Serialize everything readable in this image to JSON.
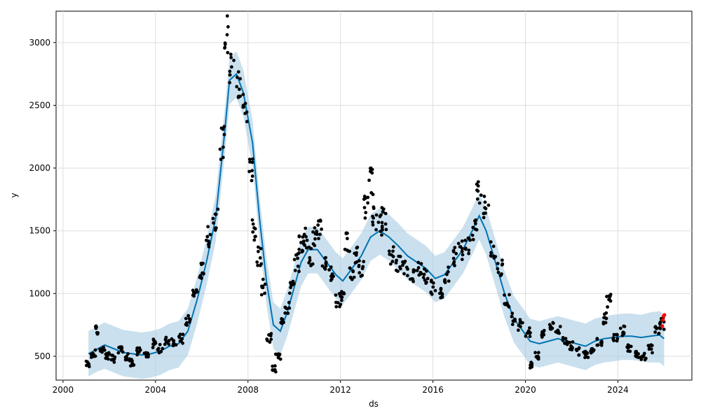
{
  "chart_data": {
    "type": "scatter",
    "title": "",
    "xlabel": "ds",
    "ylabel": "y",
    "xlim": [
      1999.7,
      2027.2
    ],
    "ylim": [
      310,
      3250
    ],
    "grid": true,
    "x_ticks": [
      2000,
      2004,
      2008,
      2012,
      2016,
      2020,
      2024
    ],
    "y_ticks": [
      500,
      1000,
      1500,
      2000,
      2500,
      3000
    ],
    "colors": {
      "observed": "#000000",
      "forecast_line": "#0072B2",
      "interval_band": "#a6cbe3",
      "recent_points": "#ff0000"
    },
    "series": [
      {
        "kind": "observed_points",
        "x": [
          2001.1,
          2001.3,
          2001.5,
          2001.7,
          2001.9,
          2002.2,
          2002.5,
          2002.8,
          2003.0,
          2003.3,
          2003.6,
          2003.9,
          2004.2,
          2004.5,
          2004.8,
          2005.1,
          2005.4,
          2005.7,
          2006.0,
          2006.3,
          2006.6,
          2006.9,
          2007.1,
          2007.3,
          2007.6,
          2007.9,
          2008.1,
          2008.3,
          2008.5,
          2008.7,
          2008.9,
          2009.1,
          2009.3,
          2009.5,
          2009.7,
          2009.9,
          2010.1,
          2010.3,
          2010.5,
          2010.7,
          2010.9,
          2011.1,
          2011.3,
          2011.6,
          2011.9,
          2012.1,
          2012.3,
          2012.5,
          2012.7,
          2012.9,
          2013.1,
          2013.3,
          2013.5,
          2013.7,
          2013.9,
          2014.2,
          2014.5,
          2014.8,
          2015.1,
          2015.4,
          2015.7,
          2016.0,
          2016.3,
          2016.6,
          2016.9,
          2017.2,
          2017.5,
          2017.8,
          2018.0,
          2018.3,
          2018.6,
          2018.9,
          2019.2,
          2019.5,
          2019.8,
          2020.1,
          2020.3,
          2020.5,
          2020.8,
          2021.1,
          2021.4,
          2021.7,
          2022.0,
          2022.3,
          2022.6,
          2022.9,
          2023.2,
          2023.4,
          2023.6,
          2023.9,
          2024.2,
          2024.5,
          2024.8,
          2025.1,
          2025.4,
          2025.7,
          2025.9
        ],
        "values": [
          440,
          520,
          700,
          560,
          500,
          480,
          550,
          500,
          450,
          540,
          500,
          600,
          560,
          620,
          620,
          640,
          780,
          1000,
          1180,
          1450,
          1600,
          2200,
          3050,
          2800,
          2650,
          2500,
          2000,
          1500,
          1300,
          1050,
          650,
          400,
          500,
          800,
          880,
          1050,
          1250,
          1400,
          1450,
          1300,
          1450,
          1500,
          1250,
          1150,
          950,
          1000,
          1400,
          1150,
          1300,
          1200,
          1700,
          1900,
          1600,
          1550,
          1600,
          1300,
          1250,
          1200,
          1150,
          1200,
          1150,
          1050,
          1000,
          1150,
          1300,
          1350,
          1400,
          1500,
          1800,
          1700,
          1350,
          1200,
          950,
          800,
          750,
          700,
          430,
          500,
          680,
          750,
          700,
          620,
          580,
          540,
          520,
          560,
          620,
          800,
          950,
          650,
          700,
          570,
          520,
          500,
          560,
          700,
          760
        ]
      },
      {
        "kind": "forecast",
        "name": "",
        "x": [
          2001.1,
          2001.5,
          2001.8,
          2002.2,
          2002.6,
          2003.0,
          2003.4,
          2003.8,
          2004.2,
          2004.6,
          2005.0,
          2005.4,
          2005.8,
          2006.2,
          2006.6,
          2007.0,
          2007.2,
          2007.5,
          2007.8,
          2008.2,
          2008.5,
          2008.8,
          2009.1,
          2009.4,
          2009.7,
          2010.0,
          2010.3,
          2010.6,
          2011.0,
          2011.4,
          2011.8,
          2012.1,
          2012.5,
          2012.9,
          2013.3,
          2013.7,
          2014.1,
          2014.5,
          2014.9,
          2015.3,
          2015.7,
          2016.1,
          2016.5,
          2016.9,
          2017.3,
          2017.7,
          2018.0,
          2018.3,
          2018.7,
          2019.1,
          2019.5,
          2019.9,
          2020.2,
          2020.6,
          2021.0,
          2021.4,
          2021.8,
          2022.2,
          2022.6,
          2023.0,
          2023.4,
          2023.8,
          2024.2,
          2024.6,
          2025.0,
          2025.4,
          2025.8,
          2026.0
        ],
        "values": [
          520,
          560,
          590,
          560,
          530,
          520,
          510,
          520,
          540,
          580,
          600,
          700,
          950,
          1250,
          1600,
          2300,
          2700,
          2750,
          2600,
          2200,
          1600,
          1100,
          750,
          700,
          850,
          1050,
          1250,
          1350,
          1350,
          1250,
          1150,
          1100,
          1200,
          1300,
          1450,
          1500,
          1450,
          1380,
          1300,
          1250,
          1200,
          1120,
          1150,
          1250,
          1350,
          1500,
          1620,
          1500,
          1250,
          1000,
          800,
          700,
          620,
          600,
          620,
          640,
          620,
          600,
          580,
          620,
          640,
          650,
          660,
          660,
          650,
          660,
          670,
          640
        ]
      },
      {
        "kind": "interval_band",
        "x": [
          2001.1,
          2001.5,
          2001.8,
          2002.2,
          2002.6,
          2003.0,
          2003.4,
          2003.8,
          2004.2,
          2004.6,
          2005.0,
          2005.4,
          2005.8,
          2006.2,
          2006.6,
          2007.0,
          2007.2,
          2007.5,
          2007.8,
          2008.2,
          2008.5,
          2008.8,
          2009.1,
          2009.4,
          2009.7,
          2010.0,
          2010.3,
          2010.6,
          2011.0,
          2011.4,
          2011.8,
          2012.1,
          2012.5,
          2012.9,
          2013.3,
          2013.7,
          2014.1,
          2014.5,
          2014.9,
          2015.3,
          2015.7,
          2016.1,
          2016.5,
          2016.9,
          2017.3,
          2017.7,
          2018.0,
          2018.3,
          2018.7,
          2019.1,
          2019.5,
          2019.9,
          2020.2,
          2020.6,
          2021.0,
          2021.4,
          2021.8,
          2022.2,
          2022.6,
          2023.0,
          2023.4,
          2023.8,
          2024.2,
          2024.6,
          2025.0,
          2025.4,
          2025.8,
          2026.0
        ],
        "lower": [
          340,
          380,
          400,
          370,
          340,
          330,
          320,
          330,
          350,
          390,
          410,
          510,
          760,
          1060,
          1410,
          2110,
          2510,
          2560,
          2410,
          2010,
          1410,
          910,
          560,
          510,
          660,
          860,
          1060,
          1160,
          1160,
          1060,
          960,
          910,
          1010,
          1110,
          1260,
          1310,
          1260,
          1190,
          1110,
          1060,
          1010,
          930,
          960,
          1060,
          1160,
          1310,
          1430,
          1310,
          1060,
          810,
          610,
          510,
          430,
          410,
          430,
          450,
          430,
          410,
          390,
          430,
          450,
          460,
          470,
          470,
          460,
          450,
          450,
          420
        ],
        "upper": [
          700,
          740,
          770,
          740,
          710,
          700,
          690,
          700,
          720,
          760,
          780,
          880,
          1130,
          1430,
          1780,
          2480,
          2880,
          2930,
          2780,
          2380,
          1780,
          1280,
          930,
          880,
          1030,
          1230,
          1430,
          1530,
          1530,
          1430,
          1330,
          1280,
          1380,
          1480,
          1630,
          1680,
          1630,
          1560,
          1480,
          1430,
          1380,
          1300,
          1330,
          1430,
          1530,
          1680,
          1800,
          1680,
          1430,
          1180,
          980,
          880,
          800,
          780,
          800,
          820,
          800,
          780,
          760,
          800,
          820,
          830,
          840,
          840,
          830,
          850,
          860,
          830
        ]
      },
      {
        "kind": "recent_points",
        "x": [
          2025.92,
          2025.95,
          2025.98,
          2026.01
        ],
        "values": [
          740,
          790,
          820,
          830
        ]
      }
    ]
  }
}
